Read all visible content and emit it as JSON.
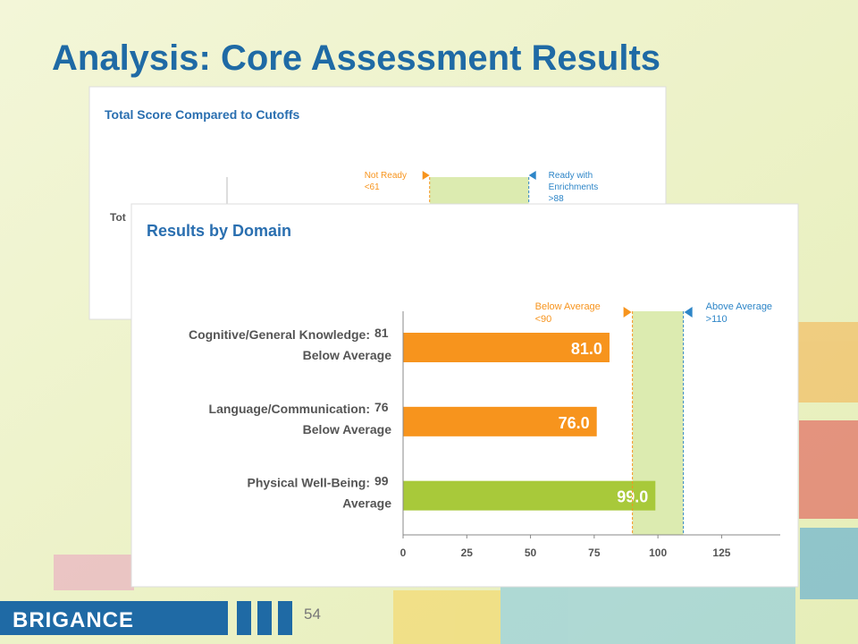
{
  "slide": {
    "title": "Analysis: Core Assessment Results",
    "page_number": "54",
    "logo": "BRIGANCE"
  },
  "back_chart": {
    "title": "Total Score Compared to Cutoffs",
    "label_fragment": "Tot",
    "cutoffs": [
      {
        "label": "Not Ready",
        "value_label": "<61",
        "value": 61,
        "color": "#f7941d"
      },
      {
        "label": "Ready with",
        "label2": "Enrichments",
        "value_label": ">88",
        "value": 88,
        "color": "#2e86c8"
      }
    ]
  },
  "chart_data": {
    "type": "bar",
    "orientation": "horizontal",
    "title": "Results by Domain",
    "categories": [
      "Cognitive/General Knowledge:",
      "Language/Communication:",
      "Physical Well-Being:"
    ],
    "scores": [
      81,
      76,
      99
    ],
    "ratings": [
      "Below Average",
      "Below Average",
      "Average"
    ],
    "values": [
      81,
      76,
      99
    ],
    "value_labels": [
      "81.0",
      "76.0",
      "99.0"
    ],
    "colors": [
      "#f7941d",
      "#f7941d",
      "#a8c93a"
    ],
    "xlim": [
      0,
      148
    ],
    "xticks": [
      0,
      25,
      50,
      75,
      100,
      125
    ],
    "bands": [
      {
        "label": "Below Average",
        "value_label": "<90",
        "value": 90,
        "color": "#f7941d"
      },
      {
        "label": "Above Average",
        "value_label": ">110",
        "value": 110,
        "color": "#2e86c8"
      }
    ]
  }
}
